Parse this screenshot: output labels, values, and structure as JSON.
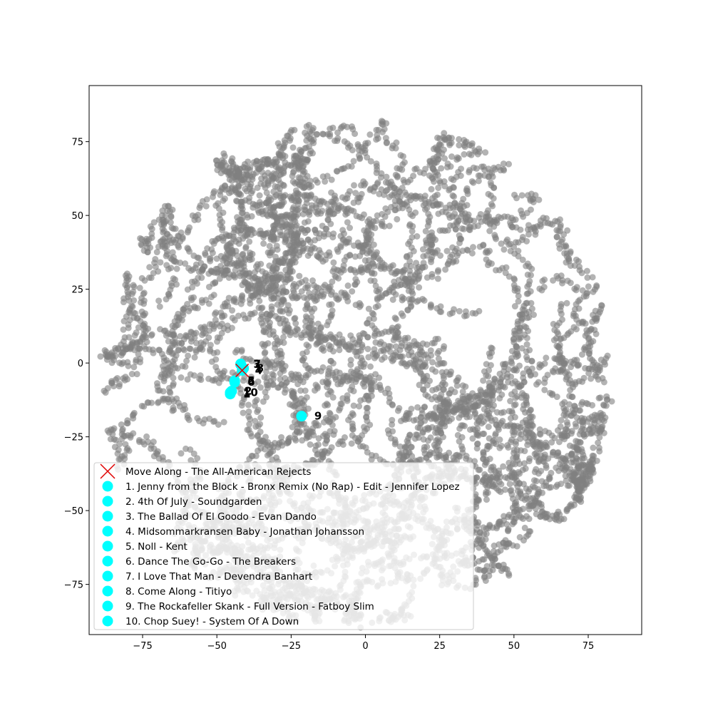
{
  "chart_data": {
    "type": "scatter",
    "title": "",
    "xlabel": "",
    "ylabel": "",
    "xlim": [
      -93,
      93
    ],
    "ylim": [
      -92,
      94
    ],
    "x_ticks": [
      -75,
      -50,
      -25,
      0,
      25,
      50,
      75
    ],
    "y_ticks": [
      -75,
      -50,
      -25,
      0,
      25,
      50,
      75
    ],
    "x_tick_labels": [
      "−75",
      "−50",
      "−25",
      "0",
      "25",
      "50",
      "75"
    ],
    "y_tick_labels": [
      "−75",
      "−50",
      "−25",
      "0",
      "25",
      "50",
      "75"
    ],
    "grid": false,
    "legend_position": "lower-left",
    "colors": {
      "background": "#808080",
      "query": "#e00000",
      "recommendation": "#00ffff"
    },
    "background_shape": {
      "description": "dense grey t-SNE point cloud, roughly circular",
      "center": [
        -3,
        -3
      ],
      "radius": 86
    },
    "query": {
      "label": "Move Along - The All-American Rejects",
      "x": -41.5,
      "y": -2.5,
      "marker": "x"
    },
    "recommendations": [
      {
        "rank": "1",
        "label": "1. Jenny from the Block - Bronx Remix (No Rap) - Edit - Jennifer Lopez",
        "x": -45.5,
        "y": -10.5
      },
      {
        "rank": "2",
        "label": "2. 4th Of July - Soundgarden",
        "x": -45,
        "y": -9.5
      },
      {
        "rank": "3",
        "label": "3. The Ballad Of El Goodo - Evan Dando",
        "x": -42,
        "y": -0.5
      },
      {
        "rank": "4",
        "label": "4. Midsommarkransen Baby - Jonathan Johansson",
        "x": -41.5,
        "y": -2.5
      },
      {
        "rank": "5",
        "label": "5. Noll - Kent",
        "x": -44,
        "y": -6
      },
      {
        "rank": "6",
        "label": "6. Dance The Go-Go - The Breakers",
        "x": -44,
        "y": -6.5
      },
      {
        "rank": "7",
        "label": "7. I Love That Man - Devendra Banhart",
        "x": -42,
        "y": -0.3
      },
      {
        "rank": "8",
        "label": "8. Come Along - Titiyo",
        "x": -41,
        "y": -1.8
      },
      {
        "rank": "9",
        "label": "9. The Rockafeller Skank - Full Version - Fatboy Slim",
        "x": -21.5,
        "y": -18
      },
      {
        "rank": "10",
        "label": "10. Chop Suey! - System Of A Down",
        "x": -45.5,
        "y": -10
      }
    ]
  }
}
